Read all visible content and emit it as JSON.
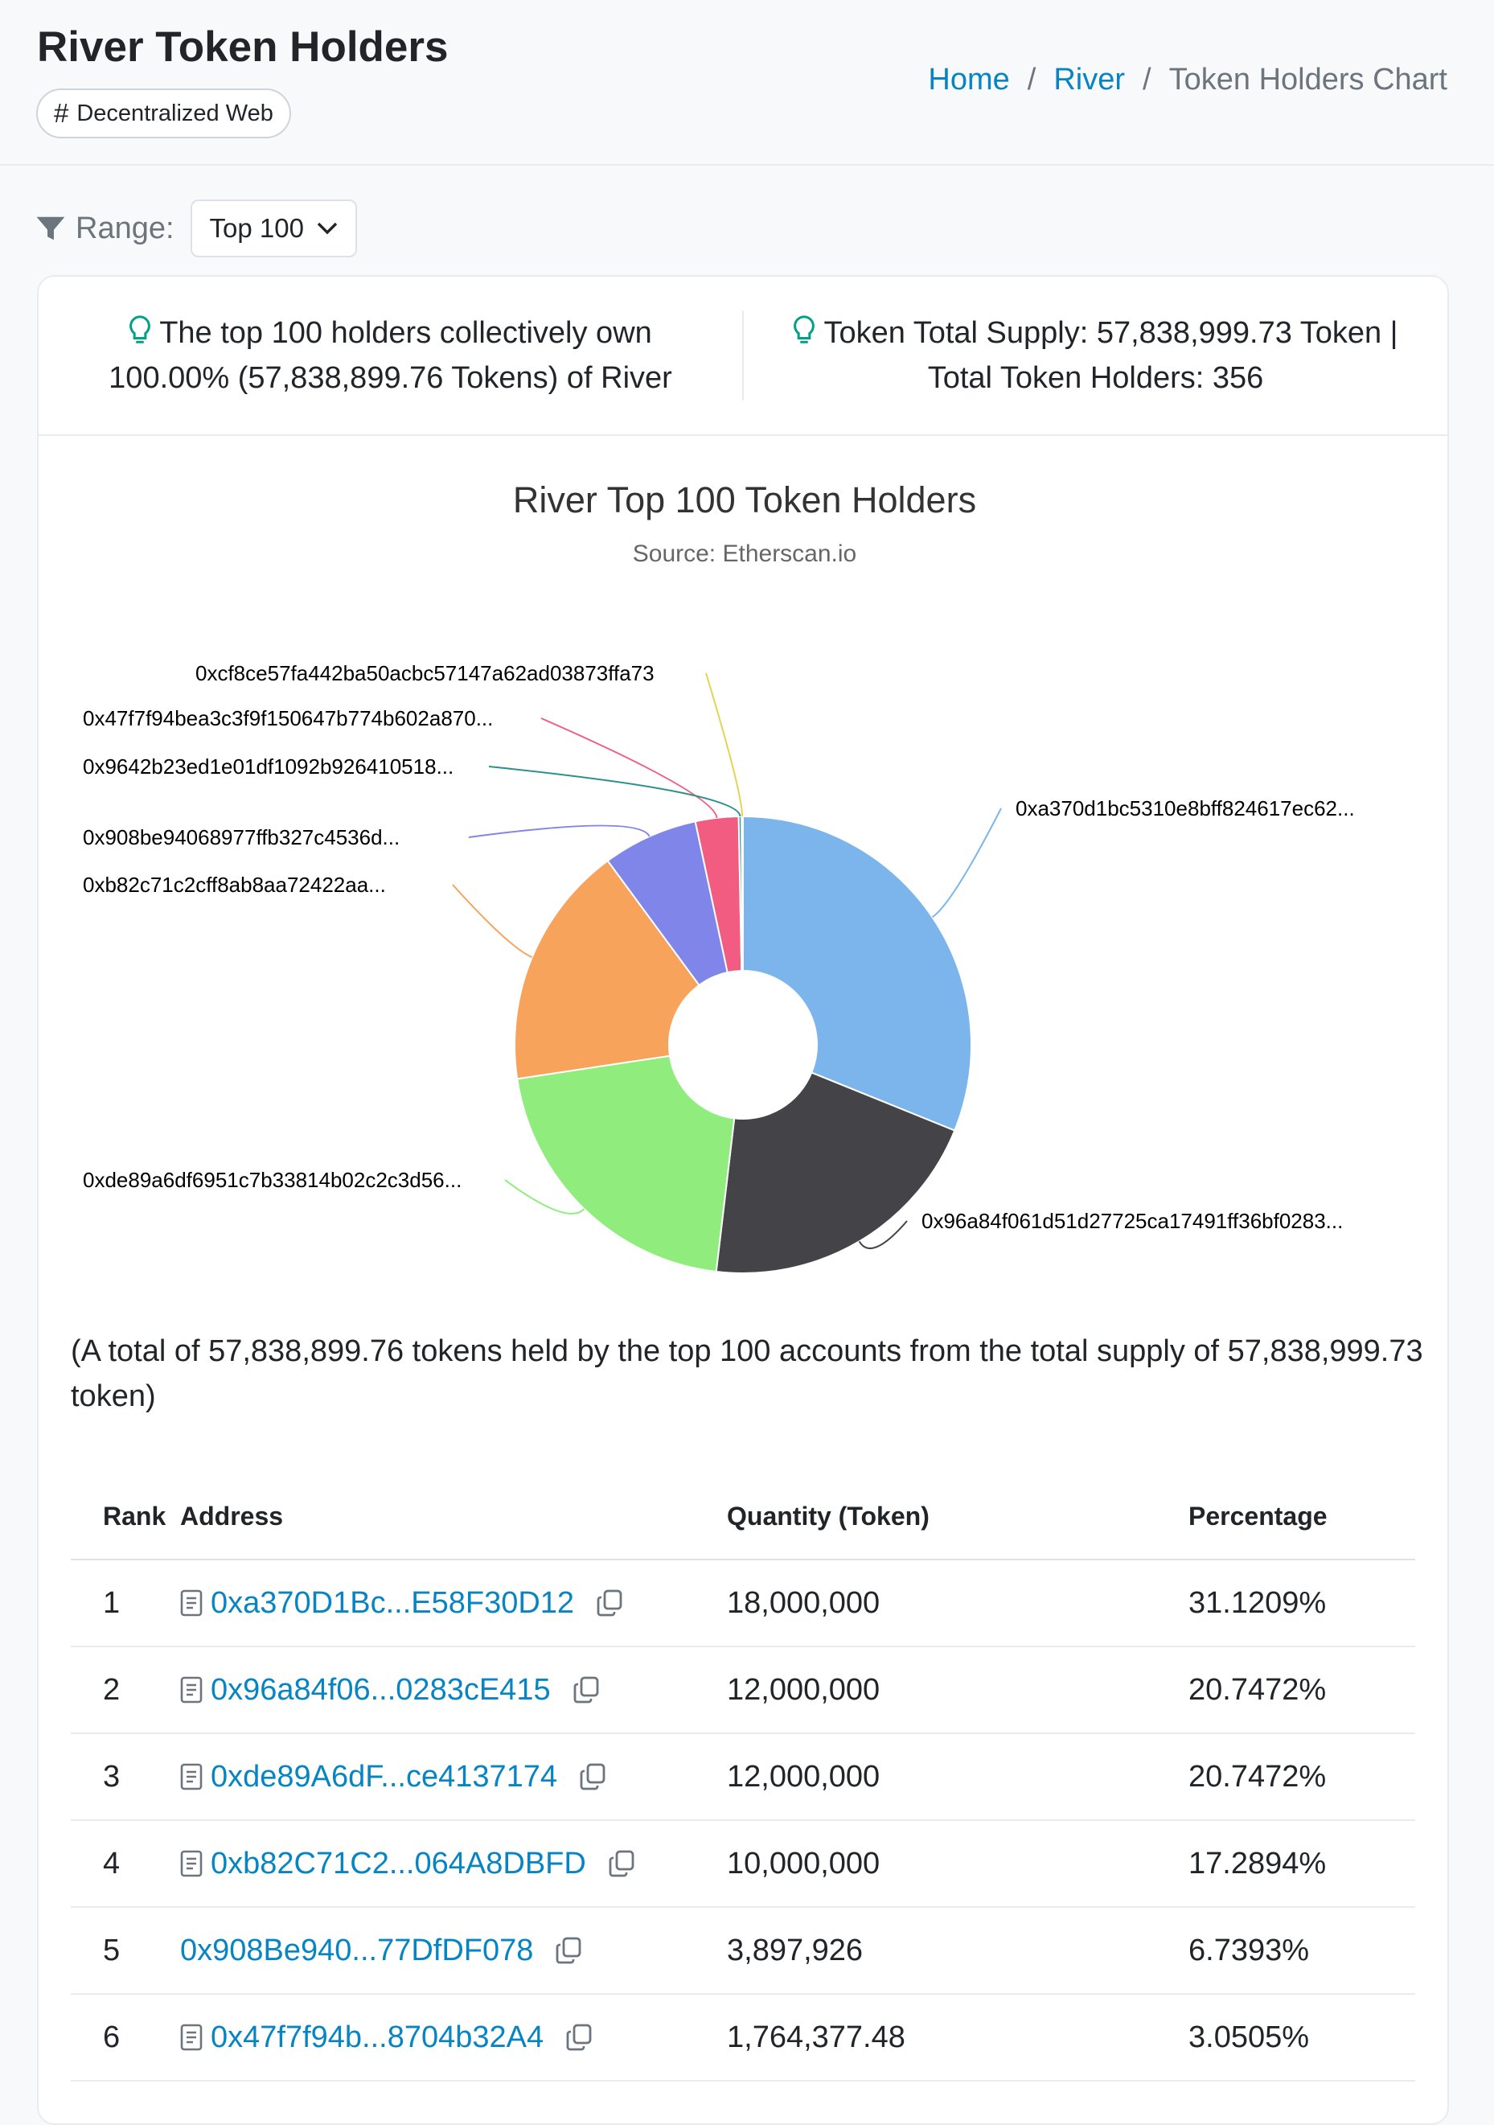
{
  "header": {
    "title": "River Token Holders",
    "tag": "Decentralized Web",
    "breadcrumb": {
      "home": "Home",
      "token": "River",
      "current": "Token Holders Chart",
      "separator": "/"
    }
  },
  "filter": {
    "label": "Range:",
    "selected": "Top 100"
  },
  "summary": {
    "left_line1": "The top 100 holders collectively own",
    "left_line2": "100.00% (57,838,899.76 Tokens) of River",
    "right_line1": "Token Total Supply: 57,838,999.73 Token  |",
    "right_line2": "Total Token Holders: 356"
  },
  "chart_data": {
    "type": "pie",
    "title": "River Top 100 Token Holders",
    "subtitle": "Source: Etherscan.io",
    "donut": true,
    "slices": [
      {
        "label": "0xa370d1bc5310e8bff824617ec62...",
        "value": 31.1209,
        "color": "#7cb5ec"
      },
      {
        "label": "0x96a84f061d51d27725ca17491ff36bf0283...",
        "value": 20.7472,
        "color": "#434348"
      },
      {
        "label": "0xde89a6df6951c7b33814b02c2c3d56...",
        "value": 20.7472,
        "color": "#90ed7d"
      },
      {
        "label": "0xb82c71c2cff8ab8aa72422aa...",
        "value": 17.2894,
        "color": "#f7a35c"
      },
      {
        "label": "0x908be94068977ffb327c4536d...",
        "value": 6.7393,
        "color": "#8085e9"
      },
      {
        "label": "0x47f7f94bea3c3f9f150647b774b602a870...",
        "value": 3.0505,
        "color": "#f15c80"
      },
      {
        "label": "0x9642b23ed1e01df1092b926410518...",
        "value": 0.2,
        "color": "#2b908f"
      },
      {
        "label": "0xcf8ce57fa442ba50acbc57147a62ad03873ffa73",
        "value": 0.1,
        "color": "#e4d354"
      }
    ]
  },
  "total_note": "(A total of 57,838,899.76 tokens held by the top 100 accounts from the total supply of 57,838,999.73 token)",
  "table": {
    "headers": {
      "rank": "Rank",
      "address": "Address",
      "quantity": "Quantity (Token)",
      "percentage": "Percentage"
    },
    "rows": [
      {
        "rank": "1",
        "address": "0xa370D1Bc...E58F30D12",
        "quantity": "18,000,000",
        "percentage": "31.1209%",
        "contract": true
      },
      {
        "rank": "2",
        "address": "0x96a84f06...0283cE415",
        "quantity": "12,000,000",
        "percentage": "20.7472%",
        "contract": true
      },
      {
        "rank": "3",
        "address": "0xde89A6dF...ce4137174",
        "quantity": "12,000,000",
        "percentage": "20.7472%",
        "contract": true
      },
      {
        "rank": "4",
        "address": "0xb82C71C2...064A8DBFD",
        "quantity": "10,000,000",
        "percentage": "17.2894%",
        "contract": true
      },
      {
        "rank": "5",
        "address": "0x908Be940...77DfDF078",
        "quantity": "3,897,926",
        "percentage": "6.7393%",
        "contract": false
      },
      {
        "rank": "6",
        "address": "0x47f7f94b...8704b32A4",
        "quantity": "1,764,377.48",
        "percentage": "3.0505%",
        "contract": true
      }
    ]
  }
}
